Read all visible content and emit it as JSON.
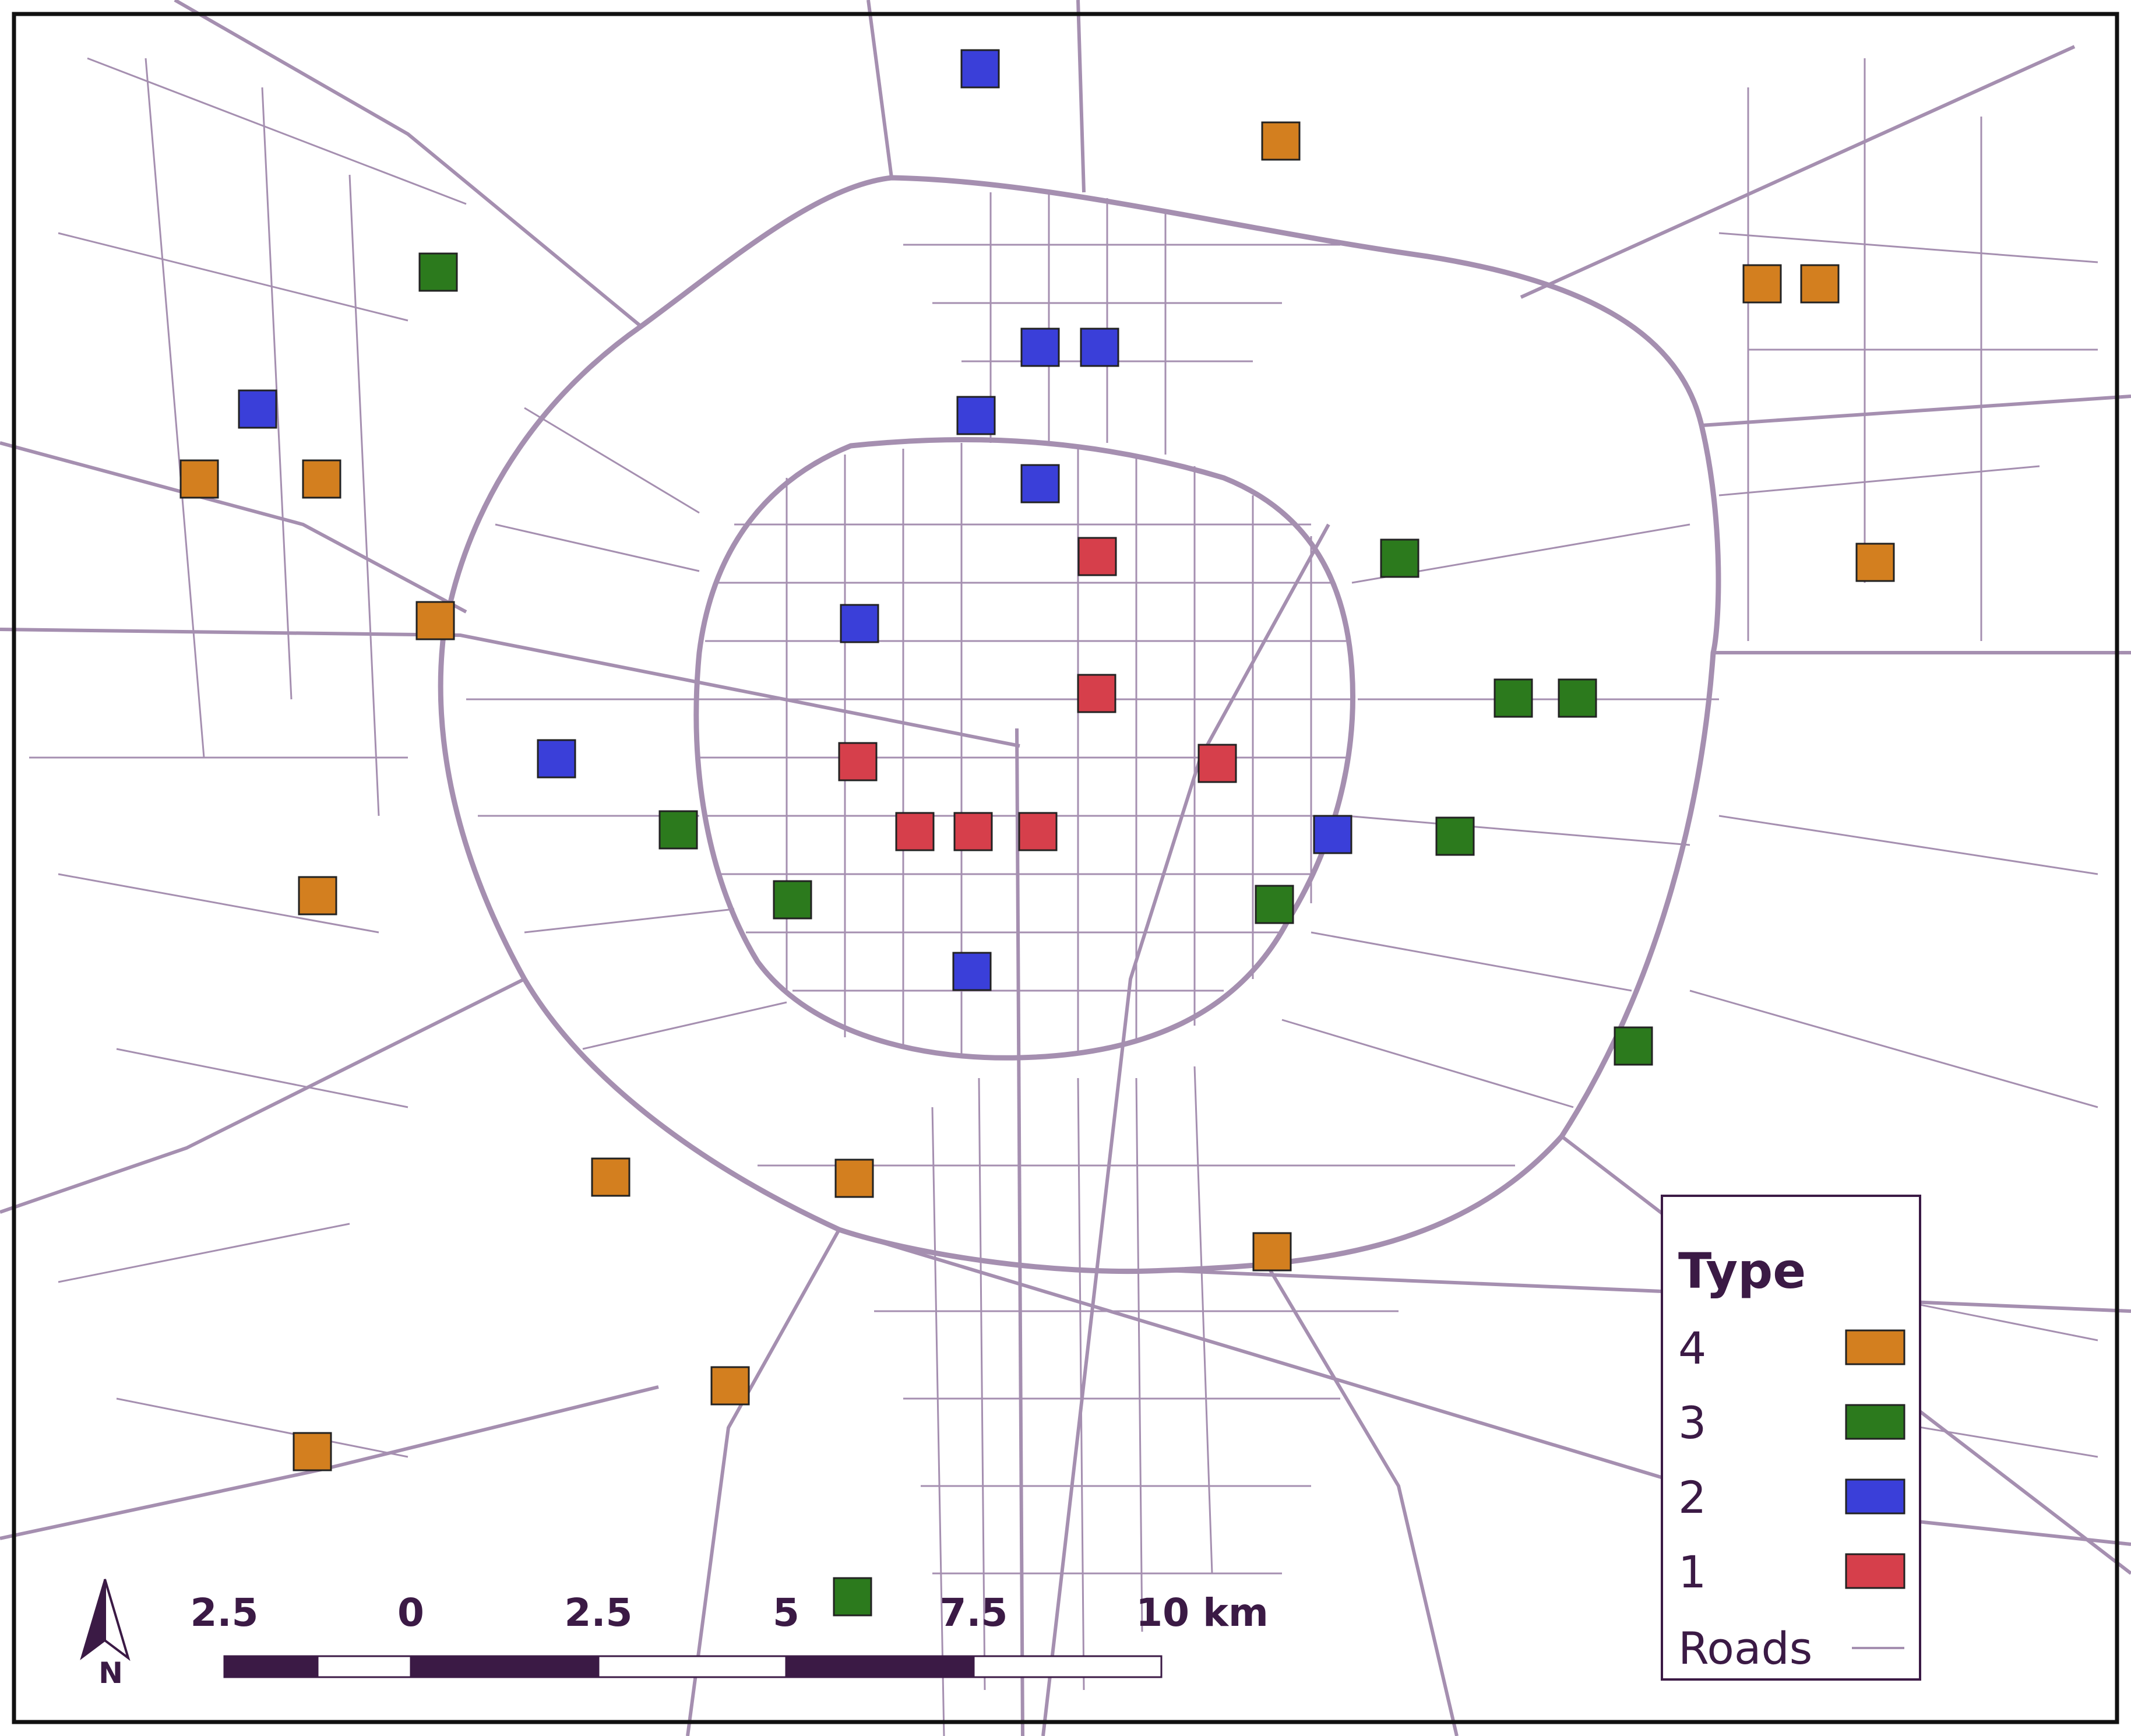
{
  "map": {
    "colors": {
      "road": "#a58fb0",
      "frame": "#111111",
      "text": "#3b1a45",
      "scale_dark": "#3b1a45",
      "type_4": "#d37f1f",
      "type_3": "#2c7a1d",
      "type_2": "#3a3fd9",
      "type_1": "#d63f4b"
    },
    "legend": {
      "title": "Type",
      "entries": [
        {
          "label": "4",
          "type": 4
        },
        {
          "label": "3",
          "type": 3
        },
        {
          "label": "2",
          "type": 2
        },
        {
          "label": "1",
          "type": 1
        }
      ],
      "roads_label": "Roads"
    },
    "scale_bar": {
      "labels": [
        "2.5",
        "0",
        "2.5",
        "5",
        "7.5",
        "10 km"
      ]
    },
    "north_arrow": {
      "label": "N"
    }
  }
}
